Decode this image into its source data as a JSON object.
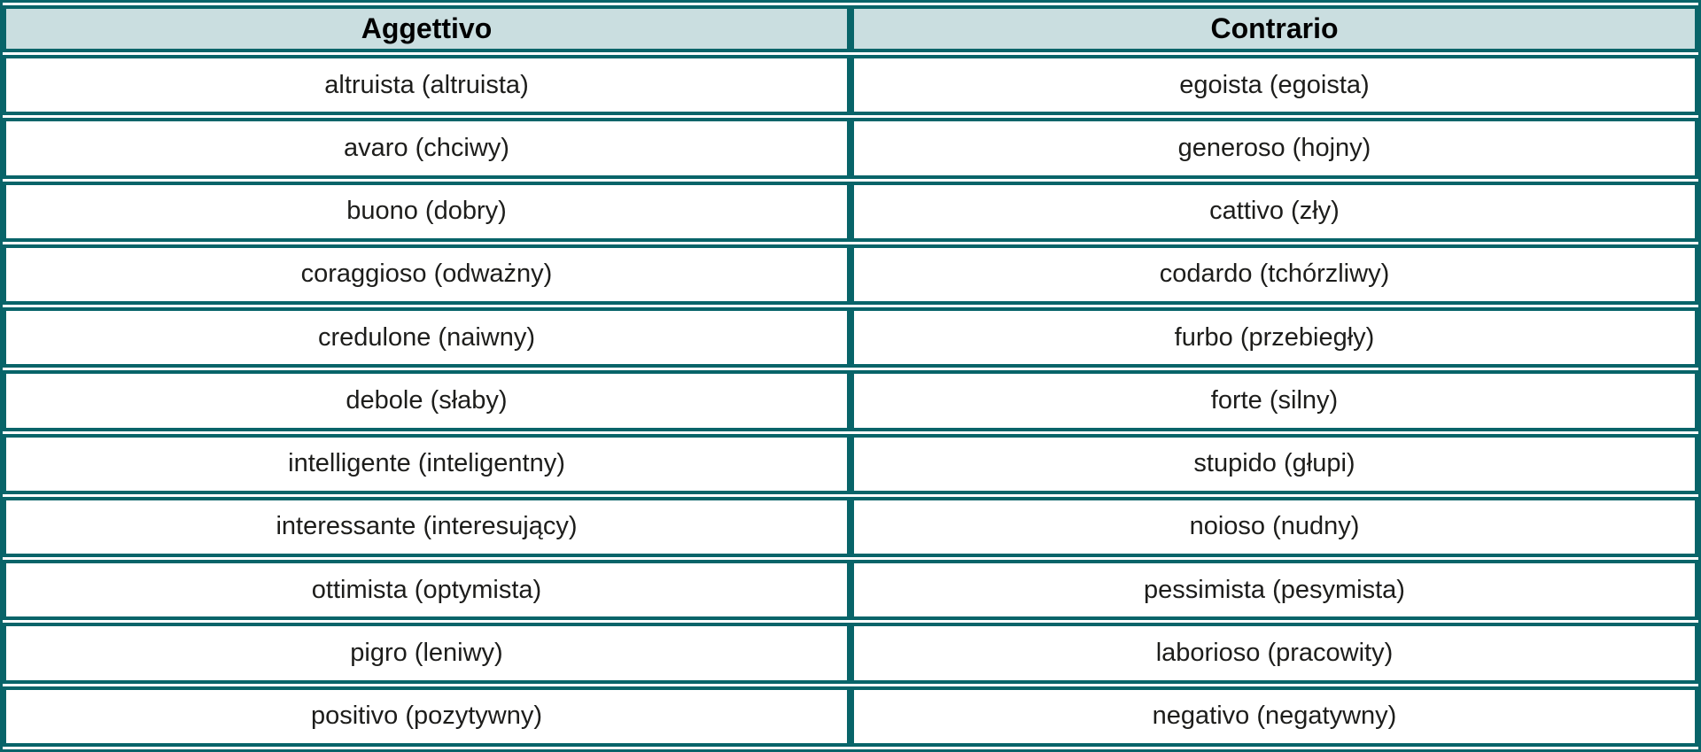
{
  "colors": {
    "border": "#086469",
    "header_bg": "#cadee0",
    "text": "#1d1d1b"
  },
  "table": {
    "columns": [
      "Aggettivo",
      "Contrario"
    ],
    "rows": [
      {
        "aggettivo": "altruista (altruista)",
        "contrario": "egoista (egoista)"
      },
      {
        "aggettivo": "avaro (chciwy)",
        "contrario": "generoso (hojny)"
      },
      {
        "aggettivo": "buono (dobry)",
        "contrario": "cattivo (zły)"
      },
      {
        "aggettivo": "coraggioso (odważny)",
        "contrario": "codardo (tchórzliwy)"
      },
      {
        "aggettivo": "credulone (naiwny)",
        "contrario": "furbo (przebiegły)"
      },
      {
        "aggettivo": "debole (słaby)",
        "contrario": "forte (silny)"
      },
      {
        "aggettivo": "intelligente (inteligentny)",
        "contrario": "stupido (głupi)"
      },
      {
        "aggettivo": "interessante (interesujący)",
        "contrario": "noioso (nudny)"
      },
      {
        "aggettivo": "ottimista (optymista)",
        "contrario": "pessimista (pesymista)"
      },
      {
        "aggettivo": "pigro (leniwy)",
        "contrario": "laborioso (pracowity)"
      },
      {
        "aggettivo": "positivo (pozytywny)",
        "contrario": "negativo (negatywny)"
      }
    ]
  }
}
